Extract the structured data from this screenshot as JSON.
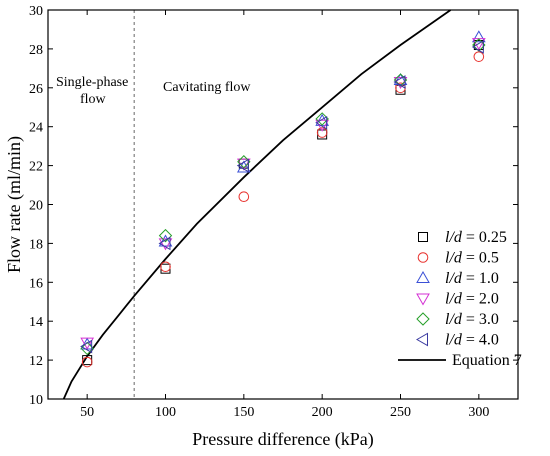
{
  "chart_data": {
    "type": "scatter",
    "xlabel": "Pressure difference (kPa)",
    "ylabel": "Flow rate (ml/min)",
    "xlim": [
      25,
      325
    ],
    "ylim": [
      10,
      30
    ],
    "x_ticks": [
      "50",
      "100",
      "150",
      "200",
      "250",
      "300"
    ],
    "y_ticks": [
      "10",
      "12",
      "14",
      "16",
      "18",
      "20",
      "22",
      "24",
      "26",
      "28",
      "30"
    ],
    "x_tick_values": [
      50,
      100,
      150,
      200,
      250,
      300
    ],
    "y_tick_values": [
      10,
      12,
      14,
      16,
      18,
      20,
      22,
      24,
      26,
      28,
      30
    ],
    "grid": false,
    "legend_placement": "bottom-right",
    "annotations": {
      "single_phase_line1": "Single-phase",
      "single_phase_line2": "flow",
      "cavitating": "Cavitating flow",
      "boundary_x": 80
    },
    "series": [
      {
        "name": "l/d = 0.25",
        "name_prefix": "l/d",
        "name_value": " = 0.25",
        "marker": "square",
        "color": "#000000",
        "x": [
          50,
          100,
          150,
          200,
          250,
          300
        ],
        "y": [
          12.0,
          16.7,
          22.1,
          23.6,
          25.9,
          28.2
        ]
      },
      {
        "name": "l/d = 0.5",
        "name_prefix": "l/d",
        "name_value": " = 0.5",
        "marker": "circle",
        "color": "#e8322e",
        "x": [
          50,
          100,
          150,
          200,
          250,
          300
        ],
        "y": [
          11.9,
          16.8,
          20.4,
          23.7,
          26.0,
          27.6
        ]
      },
      {
        "name": "l/d = 1.0",
        "name_prefix": "l/d",
        "name_value": " = 1.0",
        "marker": "triangle-up",
        "color": "#3b50d6",
        "x": [
          50,
          100,
          150,
          200,
          250,
          300
        ],
        "y": [
          12.8,
          18.1,
          21.9,
          24.3,
          26.4,
          28.6
        ]
      },
      {
        "name": "l/d = 2.0",
        "name_prefix": "l/d",
        "name_value": " = 2.0",
        "marker": "triangle-down",
        "color": "#d430d4",
        "x": [
          50,
          100,
          150,
          200,
          250,
          300
        ],
        "y": [
          12.9,
          18.0,
          22.1,
          24.1,
          26.3,
          28.3
        ]
      },
      {
        "name": "l/d = 3.0",
        "name_prefix": "l/d",
        "name_value": " = 3.0",
        "marker": "diamond",
        "color": "#27a02a",
        "x": [
          50,
          100,
          150,
          200,
          250,
          300
        ],
        "y": [
          12.6,
          18.4,
          22.2,
          24.4,
          26.4,
          28.2
        ]
      },
      {
        "name": "l/d = 4.0",
        "name_prefix": "l/d",
        "name_value": " = 4.0",
        "marker": "triangle-left",
        "color": "#3a3aa0",
        "x": [
          50,
          100,
          150,
          200,
          250,
          300
        ],
        "y": [
          12.7,
          18.0,
          22.0,
          24.2,
          26.3,
          28.1
        ]
      },
      {
        "name": "Equation 7",
        "type": "line",
        "color": "#000000",
        "x": [
          35,
          40,
          50,
          60,
          70,
          80,
          100,
          120,
          150,
          175,
          200,
          225,
          250,
          282
        ],
        "y": [
          10.0,
          10.9,
          12.2,
          13.3,
          14.3,
          15.3,
          17.2,
          19.0,
          21.4,
          23.3,
          25.0,
          26.7,
          28.2,
          30.0
        ]
      }
    ]
  }
}
